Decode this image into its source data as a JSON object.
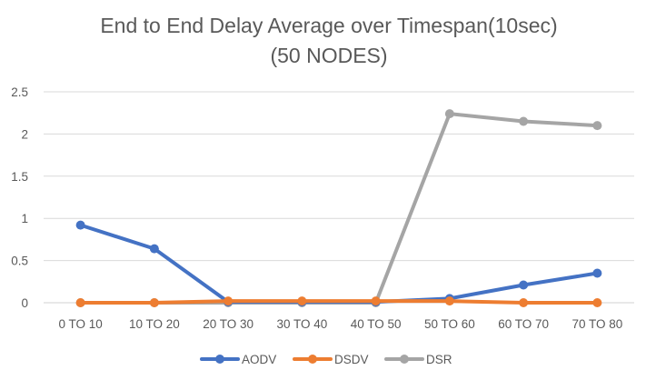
{
  "chart_data": {
    "type": "line",
    "title": "End to End Delay Average over Timespan(10sec)",
    "subtitle": "(50 NODES)",
    "xlabel": "",
    "ylabel": "",
    "categories": [
      "0 TO 10",
      "10 TO 20",
      "20 TO 30",
      "30 TO 40",
      "40 TO 50",
      "50 TO 60",
      "60 TO 70",
      "70 TO 80"
    ],
    "ylim": [
      0,
      2.5
    ],
    "yticks": [
      "0",
      "0.5",
      "1",
      "1.5",
      "2",
      "2.5"
    ],
    "ytick_values": [
      0,
      0.5,
      1,
      1.5,
      2,
      2.5
    ],
    "grid": true,
    "legend_position": "bottom",
    "series": [
      {
        "name": "AODV",
        "color": "#4472C4",
        "values": [
          0.92,
          0.64,
          0.01,
          0.01,
          0.01,
          0.05,
          0.21,
          0.35
        ]
      },
      {
        "name": "DSDV",
        "color": "#ED7D31",
        "values": [
          0.0,
          0.0,
          0.02,
          0.02,
          0.02,
          0.02,
          0.0,
          0.0
        ]
      },
      {
        "name": "DSR",
        "color": "#A5A5A5",
        "values": [
          0.0,
          0.0,
          0.0,
          0.0,
          0.0,
          2.24,
          2.15,
          2.1
        ]
      }
    ]
  }
}
